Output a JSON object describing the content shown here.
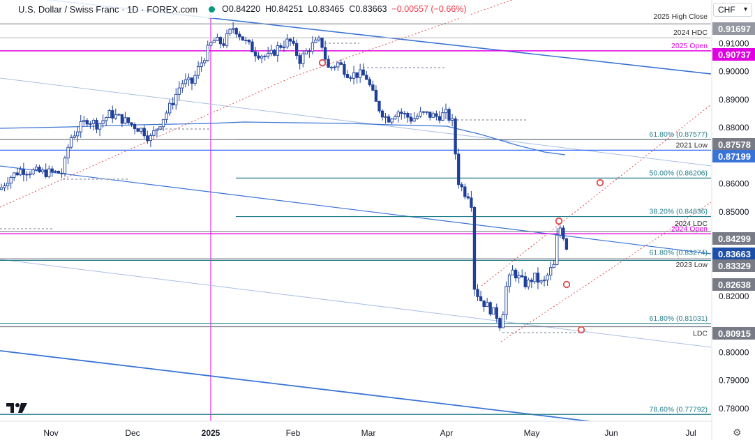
{
  "header": {
    "title": "U.S. Dollar / Swiss Franc · 1D · FOREX.com",
    "open": "O0.84220",
    "high": "H0.84251",
    "low": "L0.83465",
    "close": "C0.83663",
    "change": "−0.00557 (−0.66%)"
  },
  "currency_selector": {
    "value": "CHF"
  },
  "chart_data": {
    "type": "candlestick",
    "symbol": "USD/CHF",
    "timeframe": "1D",
    "x_tick_labels": [
      "Nov",
      "Dec",
      "2025",
      "Feb",
      "Mar",
      "Apr",
      "May",
      "Jun",
      "Jul"
    ],
    "y_tick_labels": [
      "0.91000",
      "0.90000",
      "0.89000",
      "0.88000",
      "0.86000",
      "0.85000",
      "0.82000",
      "0.80000",
      "0.79000",
      "0.78000"
    ],
    "ylim": [
      0.7755,
      0.9205
    ],
    "horizontal_levels": [
      {
        "price": 0.91697,
        "color": "#9598a1",
        "label": "2025 High Close",
        "tag": "0.91697",
        "tag_bg": "#9598a1"
      },
      {
        "price": 0.912,
        "color": "#c2c4ca",
        "label": "2024 HDC",
        "tag": "",
        "tag_bg": ""
      },
      {
        "price": 0.90737,
        "color": "#e100e1",
        "label": "2025 Open",
        "tag": "0.90737",
        "tag_bg": "#e100e1"
      },
      {
        "price": 0.87577,
        "color": "#217e8b",
        "label": "61.80% (0.87577)",
        "tag": "",
        "tag_bg": ""
      },
      {
        "price": 0.87578,
        "color": "#787b86",
        "label": "",
        "tag": "0.87578",
        "tag_bg": "#787b86"
      },
      {
        "price": 0.87199,
        "color": "#2962ff",
        "label": "2021 Low",
        "tag": "0.87199",
        "tag_bg": "#3a73d6"
      },
      {
        "price": 0.86206,
        "color": "#217e8b",
        "label": "50.00% (0.86206)",
        "tag": "",
        "tag_bg": ""
      },
      {
        "price": 0.84836,
        "color": "#217e8b",
        "label": "38.20% (0.84836)",
        "tag": "",
        "tag_bg": ""
      },
      {
        "price": 0.84299,
        "color": "#787b86",
        "label": "2024 LDC",
        "tag": "0.84299",
        "tag_bg": "#787b86"
      },
      {
        "price": 0.8422,
        "color": "#e100e1",
        "label": "2024 Open",
        "tag": "",
        "tag_bg": ""
      },
      {
        "price": 0.83663,
        "color": "#2962ff",
        "label": "",
        "tag": "0.83663",
        "tag_bg": "#1e4fa8"
      },
      {
        "price": 0.83274,
        "color": "#217e8b",
        "label": "61.80% (0.83274)",
        "tag": "",
        "tag_bg": ""
      },
      {
        "price": 0.83329,
        "color": "#787b86",
        "label": "2023 Low",
        "tag": "0.83329",
        "tag_bg": "#787b86"
      },
      {
        "price": 0.82638,
        "color": "#787b86",
        "label": "",
        "tag": "0.82638",
        "tag_bg": "#787b86"
      },
      {
        "price": 0.81031,
        "color": "#217e8b",
        "label": "61.80% (0.81031)",
        "tag": "",
        "tag_bg": ""
      },
      {
        "price": 0.80915,
        "color": "#787b86",
        "label": "LDC",
        "tag": "0.80915",
        "tag_bg": "#787b86"
      },
      {
        "price": 0.77792,
        "color": "#217e8b",
        "label": "78.60% (0.77792)",
        "tag": "",
        "tag_bg": ""
      }
    ],
    "colors": {
      "up": "#1e3f9a",
      "down": "#1e3f9a",
      "channel": "#3a73d6",
      "channel_light": "#a9bfe6",
      "sma": "#3a73d6",
      "fib": "#217e8b",
      "open_marker": "#e100e1",
      "pitchfork": "#e04848"
    }
  }
}
